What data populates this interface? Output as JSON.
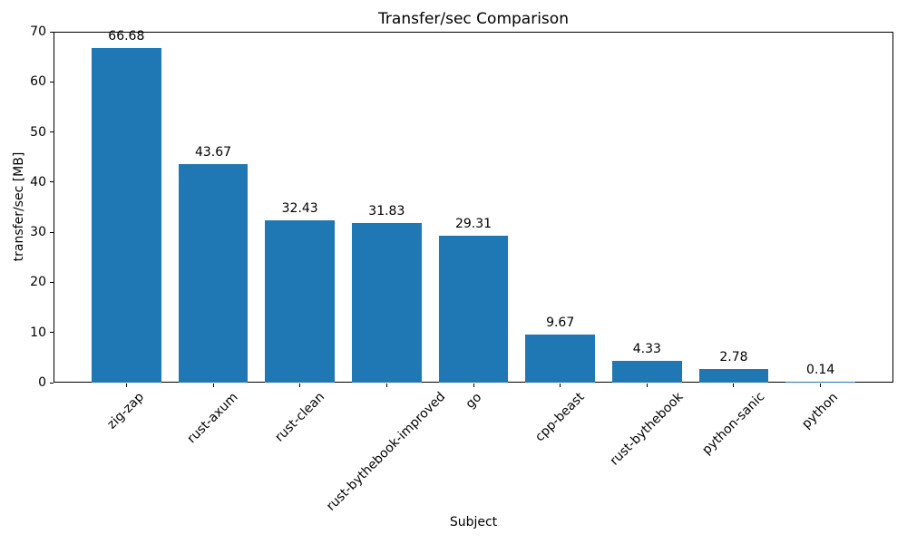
{
  "chart_data": {
    "type": "bar",
    "title": "Transfer/sec Comparison",
    "xlabel": "Subject",
    "ylabel": "transfer/sec [MB]",
    "categories": [
      "zig-zap",
      "rust-axum",
      "rust-clean",
      "rust-bythebook-improved",
      "go",
      "cpp-beast",
      "rust-bythebook",
      "python-sanic",
      "python"
    ],
    "values": [
      66.68,
      43.67,
      32.43,
      31.83,
      29.31,
      9.67,
      4.33,
      2.78,
      0.14
    ],
    "value_labels": [
      "66.68",
      "43.67",
      "32.43",
      "31.83",
      "29.31",
      "9.67",
      "4.33",
      "2.78",
      "0.14"
    ],
    "yticks": [
      0,
      10,
      20,
      30,
      40,
      50,
      60,
      70
    ],
    "ylim": [
      0,
      70
    ],
    "bar_color": "#1f77b4",
    "grid": false,
    "legend_position": "none"
  }
}
